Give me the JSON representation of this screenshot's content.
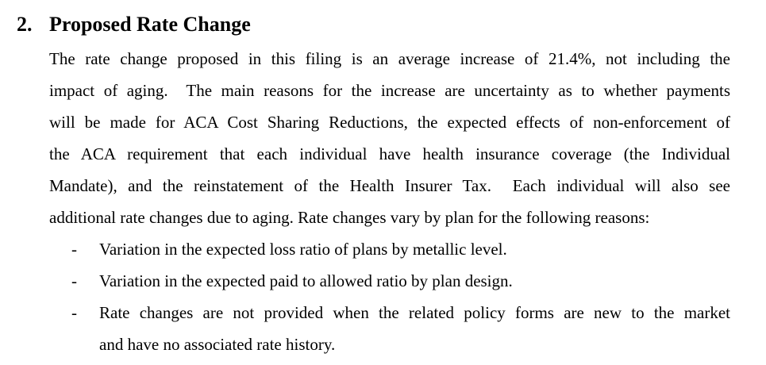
{
  "colors": {
    "background": "#ffffff",
    "text": "#000000"
  },
  "heading": {
    "number": "2.",
    "title": "Proposed Rate Change"
  },
  "paragraph": {
    "lines": [
      {
        "text": "The rate change proposed in this filing is an average increase of 21.4%, not including the",
        "flush": true
      },
      {
        "text": "impact of aging.  The main reasons for the increase are uncertainty as to whether payments",
        "flush": true
      },
      {
        "text": "will be made for ACA Cost Sharing Reductions, the expected effects of non-enforcement of",
        "flush": true
      },
      {
        "text": "the ACA requirement that each individual have health insurance coverage (the Individual",
        "flush": true
      },
      {
        "text": "Mandate), and the reinstatement of the Health Insurer Tax.  Each individual will also see",
        "flush": true
      },
      {
        "text": "additional rate changes due to aging. Rate changes vary by plan for the following reasons:",
        "flush": false
      }
    ]
  },
  "bullets": [
    {
      "marker": "-",
      "lines": [
        {
          "text": "Variation in the expected loss ratio of plans by metallic level.",
          "flush": false
        }
      ]
    },
    {
      "marker": "-",
      "lines": [
        {
          "text": "Variation in the expected paid to allowed ratio by plan design.",
          "flush": false
        }
      ]
    },
    {
      "marker": "-",
      "lines": [
        {
          "text": "Rate changes are not provided when the related policy forms are new to the market",
          "flush": true
        },
        {
          "text": "and have no associated rate history.",
          "flush": false
        }
      ]
    }
  ]
}
